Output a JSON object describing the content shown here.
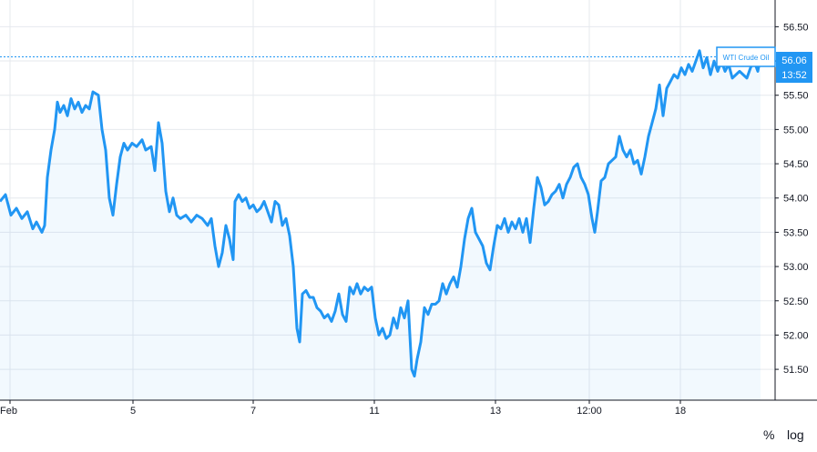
{
  "chart_data": {
    "type": "area",
    "series": [
      {
        "name": "WTI Crude Oil",
        "color": "#2196f3"
      }
    ],
    "x_tick_labels": [
      "Feb",
      "5",
      "7",
      "11",
      "13",
      "12:00",
      "18"
    ],
    "y_ticks": [
      "56.50",
      "56.00",
      "55.50",
      "55.00",
      "54.50",
      "54.00",
      "53.50",
      "53.00",
      "52.50",
      "52.00",
      "51.50"
    ],
    "ylim": [
      51.05,
      56.89
    ],
    "grid": true,
    "last_value": "56.06",
    "last_value_time": "13:52",
    "points": [
      [
        0,
        53.95
      ],
      [
        6,
        54.05
      ],
      [
        12,
        53.75
      ],
      [
        18,
        53.85
      ],
      [
        24,
        53.7
      ],
      [
        30,
        53.8
      ],
      [
        36,
        53.55
      ],
      [
        40,
        53.65
      ],
      [
        46,
        53.5
      ],
      [
        49,
        53.6
      ],
      [
        52,
        54.3
      ],
      [
        56,
        54.7
      ],
      [
        60,
        55.0
      ],
      [
        63,
        55.4
      ],
      [
        66,
        55.25
      ],
      [
        70,
        55.35
      ],
      [
        74,
        55.2
      ],
      [
        78,
        55.45
      ],
      [
        82,
        55.3
      ],
      [
        86,
        55.4
      ],
      [
        90,
        55.25
      ],
      [
        94,
        55.35
      ],
      [
        98,
        55.3
      ],
      [
        102,
        55.55
      ],
      [
        108,
        55.5
      ],
      [
        112,
        55.0
      ],
      [
        116,
        54.7
      ],
      [
        120,
        54.0
      ],
      [
        124,
        53.75
      ],
      [
        128,
        54.2
      ],
      [
        132,
        54.6
      ],
      [
        136,
        54.8
      ],
      [
        140,
        54.7
      ],
      [
        145,
        54.8
      ],
      [
        150,
        54.75
      ],
      [
        156,
        54.85
      ],
      [
        160,
        54.7
      ],
      [
        166,
        54.75
      ],
      [
        170,
        54.4
      ],
      [
        174,
        55.1
      ],
      [
        178,
        54.8
      ],
      [
        182,
        54.1
      ],
      [
        186,
        53.8
      ],
      [
        190,
        54.0
      ],
      [
        194,
        53.75
      ],
      [
        198,
        53.7
      ],
      [
        204,
        53.75
      ],
      [
        210,
        53.65
      ],
      [
        216,
        53.75
      ],
      [
        222,
        53.7
      ],
      [
        228,
        53.6
      ],
      [
        232,
        53.7
      ],
      [
        236,
        53.3
      ],
      [
        240,
        53.0
      ],
      [
        244,
        53.2
      ],
      [
        248,
        53.6
      ],
      [
        252,
        53.4
      ],
      [
        256,
        53.1
      ],
      [
        258,
        53.95
      ],
      [
        262,
        54.05
      ],
      [
        266,
        53.95
      ],
      [
        270,
        54.0
      ],
      [
        274,
        53.85
      ],
      [
        278,
        53.9
      ],
      [
        282,
        53.8
      ],
      [
        286,
        53.85
      ],
      [
        290,
        53.95
      ],
      [
        294,
        53.8
      ],
      [
        298,
        53.65
      ],
      [
        302,
        53.95
      ],
      [
        306,
        53.9
      ],
      [
        310,
        53.6
      ],
      [
        314,
        53.7
      ],
      [
        318,
        53.45
      ],
      [
        322,
        53.0
      ],
      [
        326,
        52.1
      ],
      [
        329,
        51.9
      ],
      [
        332,
        52.6
      ],
      [
        336,
        52.65
      ],
      [
        340,
        52.55
      ],
      [
        344,
        52.55
      ],
      [
        348,
        52.4
      ],
      [
        352,
        52.35
      ],
      [
        356,
        52.25
      ],
      [
        360,
        52.3
      ],
      [
        364,
        52.2
      ],
      [
        368,
        52.35
      ],
      [
        372,
        52.6
      ],
      [
        376,
        52.3
      ],
      [
        380,
        52.2
      ],
      [
        384,
        52.7
      ],
      [
        388,
        52.6
      ],
      [
        392,
        52.75
      ],
      [
        396,
        52.6
      ],
      [
        400,
        52.7
      ],
      [
        404,
        52.65
      ],
      [
        408,
        52.7
      ],
      [
        412,
        52.25
      ],
      [
        416,
        52.0
      ],
      [
        420,
        52.1
      ],
      [
        424,
        51.95
      ],
      [
        428,
        52.0
      ],
      [
        432,
        52.25
      ],
      [
        436,
        52.1
      ],
      [
        440,
        52.4
      ],
      [
        444,
        52.25
      ],
      [
        448,
        52.5
      ],
      [
        452,
        51.5
      ],
      [
        455,
        51.4
      ],
      [
        458,
        51.65
      ],
      [
        462,
        51.9
      ],
      [
        466,
        52.4
      ],
      [
        470,
        52.3
      ],
      [
        474,
        52.45
      ],
      [
        478,
        52.45
      ],
      [
        482,
        52.5
      ],
      [
        486,
        52.75
      ],
      [
        490,
        52.6
      ],
      [
        494,
        52.75
      ],
      [
        498,
        52.85
      ],
      [
        502,
        52.7
      ],
      [
        506,
        53.0
      ],
      [
        510,
        53.4
      ],
      [
        514,
        53.7
      ],
      [
        518,
        53.85
      ],
      [
        522,
        53.5
      ],
      [
        526,
        53.4
      ],
      [
        530,
        53.3
      ],
      [
        534,
        53.05
      ],
      [
        538,
        52.95
      ],
      [
        542,
        53.3
      ],
      [
        546,
        53.6
      ],
      [
        550,
        53.55
      ],
      [
        554,
        53.7
      ],
      [
        558,
        53.5
      ],
      [
        562,
        53.65
      ],
      [
        566,
        53.55
      ],
      [
        570,
        53.7
      ],
      [
        574,
        53.5
      ],
      [
        578,
        53.7
      ],
      [
        582,
        53.35
      ],
      [
        586,
        53.85
      ],
      [
        590,
        54.3
      ],
      [
        594,
        54.15
      ],
      [
        598,
        53.9
      ],
      [
        602,
        53.95
      ],
      [
        606,
        54.05
      ],
      [
        610,
        54.1
      ],
      [
        614,
        54.2
      ],
      [
        618,
        54.0
      ],
      [
        622,
        54.2
      ],
      [
        626,
        54.3
      ],
      [
        630,
        54.45
      ],
      [
        634,
        54.5
      ],
      [
        638,
        54.3
      ],
      [
        642,
        54.2
      ],
      [
        646,
        54.05
      ],
      [
        650,
        53.7
      ],
      [
        653,
        53.5
      ],
      [
        656,
        53.8
      ],
      [
        660,
        54.25
      ],
      [
        664,
        54.3
      ],
      [
        668,
        54.5
      ],
      [
        672,
        54.55
      ],
      [
        676,
        54.6
      ],
      [
        680,
        54.9
      ],
      [
        684,
        54.7
      ],
      [
        688,
        54.6
      ],
      [
        692,
        54.7
      ],
      [
        696,
        54.5
      ],
      [
        700,
        54.55
      ],
      [
        704,
        54.35
      ],
      [
        708,
        54.6
      ],
      [
        712,
        54.9
      ],
      [
        716,
        55.1
      ],
      [
        720,
        55.3
      ],
      [
        724,
        55.65
      ],
      [
        728,
        55.2
      ],
      [
        732,
        55.6
      ],
      [
        736,
        55.7
      ],
      [
        740,
        55.8
      ],
      [
        744,
        55.75
      ],
      [
        748,
        55.9
      ],
      [
        752,
        55.8
      ],
      [
        756,
        55.95
      ],
      [
        760,
        55.85
      ],
      [
        764,
        56.0
      ],
      [
        768,
        56.15
      ],
      [
        772,
        55.9
      ],
      [
        776,
        56.05
      ],
      [
        780,
        55.8
      ],
      [
        784,
        56.0
      ],
      [
        788,
        55.85
      ],
      [
        792,
        56.0
      ],
      [
        796,
        55.85
      ],
      [
        800,
        55.95
      ],
      [
        804,
        55.75
      ],
      [
        808,
        55.8
      ],
      [
        812,
        55.85
      ],
      [
        816,
        55.8
      ],
      [
        820,
        55.75
      ],
      [
        824,
        55.9
      ],
      [
        828,
        56.0
      ],
      [
        832,
        55.85
      ],
      [
        835,
        56.06
      ]
    ]
  },
  "label_box_text": "WTI Crude Oil",
  "footer": {
    "percent_label": "%",
    "log_label": "log"
  }
}
